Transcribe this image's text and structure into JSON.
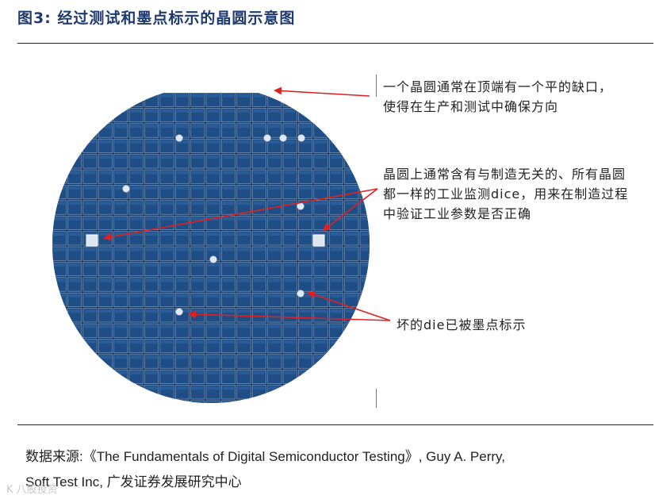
{
  "title": "图3:  经过测试和墨点标示的晶圆示意图",
  "annotations": {
    "notch": "一个晶圆通常在顶端有一个平的缺口，使得在生产和测试中确保方向",
    "test_dice": "晶圆上通常含有与制造无关的、所有晶圆都一样的工业监测dice，用来在制造过程中验证工业参数是否正确",
    "bad_die": "坏的die已被墨点标示"
  },
  "source": {
    "line1": "数据来源:《The Fundamentals of Digital Semiconductor Testing》, Guy A. Perry,",
    "line2": "Soft Test Inc, 广发证券发展研究中心"
  },
  "watermark": "K 八股投资",
  "colors": {
    "die": "#1f4e86",
    "die_edge": "#8fa8c8",
    "wafer_bg": "#153a66",
    "ink_dot": "#dfe8f4",
    "test_die": "#dce6f2",
    "arrow": "#e02020"
  }
}
